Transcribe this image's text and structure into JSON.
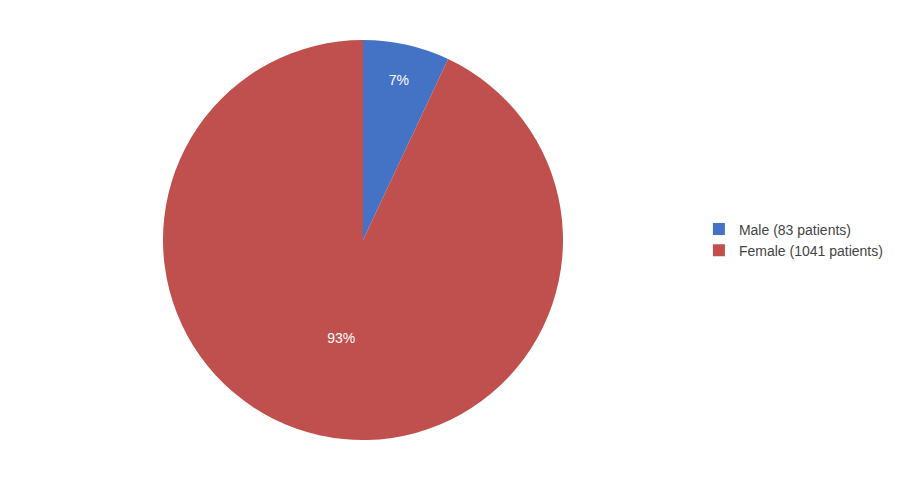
{
  "chart_data": {
    "type": "pie",
    "categories": [
      "Male (83 patients)",
      "Female (1041 patients)"
    ],
    "values": [
      7,
      93
    ],
    "value_labels": [
      "7%",
      "93%"
    ],
    "colors": [
      "#4472C4",
      "#C0504D"
    ],
    "data_labels": true,
    "legend": "right"
  }
}
